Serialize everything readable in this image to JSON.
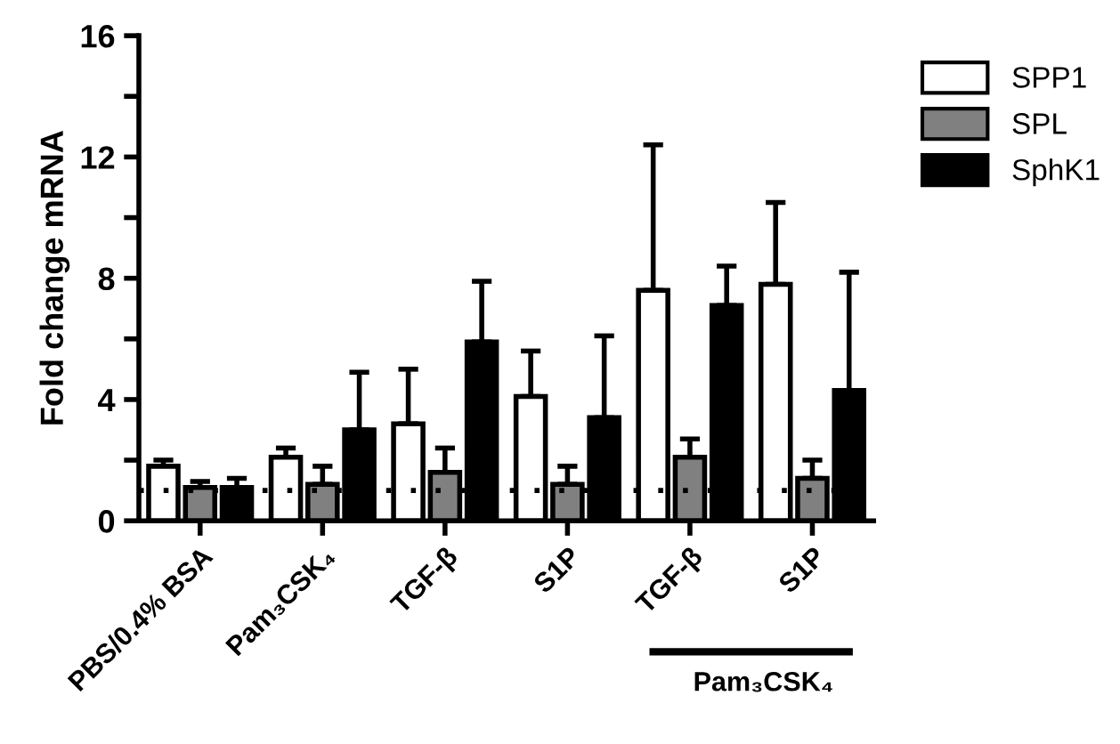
{
  "chart_data": {
    "type": "bar",
    "ylabel": "Fold change mRNA",
    "categories": [
      "PBS/0.4% BSA",
      "Pam₃CSK₄",
      "TGF-β",
      "S1P",
      "TGF-β",
      "S1P"
    ],
    "series": [
      {
        "name": "SPP1",
        "color": "#ffffff",
        "values": [
          1.8,
          2.1,
          3.2,
          4.1,
          7.6,
          7.8
        ],
        "errors": [
          [
            1.8,
            2.0
          ],
          [
            2.1,
            2.4
          ],
          [
            3.2,
            5.0
          ],
          [
            4.1,
            5.6
          ],
          [
            7.6,
            12.4
          ],
          [
            7.8,
            10.5
          ]
        ]
      },
      {
        "name": "SPL",
        "color": "#808080",
        "values": [
          1.1,
          1.2,
          1.6,
          1.2,
          2.1,
          1.4
        ],
        "errors": [
          [
            1.1,
            1.3
          ],
          [
            1.2,
            1.8
          ],
          [
            1.6,
            2.4
          ],
          [
            1.2,
            1.8
          ],
          [
            2.1,
            2.7
          ],
          [
            1.4,
            2.0
          ]
        ]
      },
      {
        "name": "SphK1",
        "color": "#000000",
        "values": [
          1.1,
          3.0,
          5.9,
          3.4,
          7.1,
          4.3
        ],
        "errors": [
          [
            1.1,
            1.4
          ],
          [
            3.0,
            4.9
          ],
          [
            5.9,
            7.9
          ],
          [
            3.4,
            6.1
          ],
          [
            7.1,
            8.4
          ],
          [
            4.3,
            8.2
          ]
        ]
      }
    ],
    "ylim": [
      0,
      16
    ],
    "yticks": [
      0,
      {
        "value": 2,
        "label": null
      },
      4,
      {
        "value": 6,
        "label": null
      },
      8,
      {
        "value": 10,
        "label": null
      },
      12,
      {
        "value": 14,
        "label": null
      },
      16
    ],
    "ref_lines": [
      {
        "axis": "y",
        "value": 1,
        "line_style": "dotted",
        "color": "#000000"
      }
    ],
    "annotations": [
      "Pam₃CSK₄"
    ],
    "grid": false,
    "legend": "top right"
  }
}
